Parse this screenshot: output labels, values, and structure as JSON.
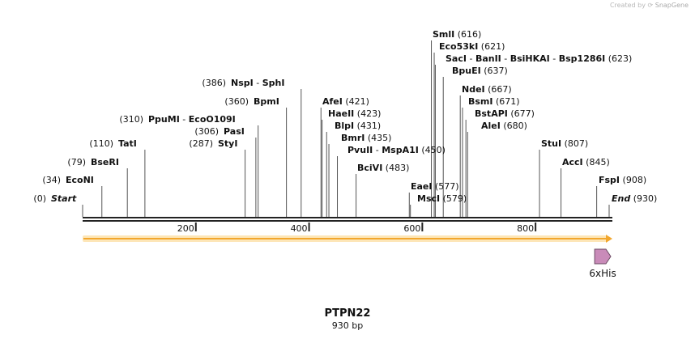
{
  "credit": {
    "prefix": "Created by",
    "brand": "SnapGene"
  },
  "sequence": {
    "name": "PTPN22",
    "length_label": "930 bp",
    "length": 930
  },
  "ruler": {
    "ticks": [
      "200",
      "400",
      "600",
      "800"
    ]
  },
  "sites": [
    {
      "names": [
        "Start"
      ],
      "pos": "(0)",
      "bp": 0,
      "italic": true
    },
    {
      "names": [
        "EcoNI"
      ],
      "pos": "(34)",
      "bp": 34
    },
    {
      "names": [
        "BseRI"
      ],
      "pos": "(79)",
      "bp": 79
    },
    {
      "names": [
        "TatI"
      ],
      "pos": "(110)",
      "bp": 110
    },
    {
      "names": [
        "StyI"
      ],
      "pos": "(287)",
      "bp": 287
    },
    {
      "names": [
        "PasI"
      ],
      "pos": "(306)",
      "bp": 306
    },
    {
      "names": [
        "PpuMI",
        "EcoO109I"
      ],
      "pos": "(310)",
      "bp": 310
    },
    {
      "names": [
        "BpmI"
      ],
      "pos": "(360)",
      "bp": 360
    },
    {
      "names": [
        "NspI",
        "SphI"
      ],
      "pos": "(386)",
      "bp": 386
    },
    {
      "names": [
        "AfeI"
      ],
      "pos": "(421)",
      "bp": 421
    },
    {
      "names": [
        "HaeII"
      ],
      "pos": "(423)",
      "bp": 423
    },
    {
      "names": [
        "BlpI"
      ],
      "pos": "(431)",
      "bp": 431
    },
    {
      "names": [
        "BmrI"
      ],
      "pos": "(435)",
      "bp": 435
    },
    {
      "names": [
        "PvuII",
        "MspA1I"
      ],
      "pos": "(450)",
      "bp": 450
    },
    {
      "names": [
        "BciVI"
      ],
      "pos": "(483)",
      "bp": 483
    },
    {
      "names": [
        "EaeI"
      ],
      "pos": "(577)",
      "bp": 577
    },
    {
      "names": [
        "MscI"
      ],
      "pos": "(579)",
      "bp": 579
    },
    {
      "names": [
        "SmlI"
      ],
      "pos": "(616)",
      "bp": 616
    },
    {
      "names": [
        "Eco53kI"
      ],
      "pos": "(621)",
      "bp": 621
    },
    {
      "names": [
        "SacI",
        "BanII",
        "BsiHKAI",
        "Bsp1286I"
      ],
      "pos": "(623)",
      "bp": 623
    },
    {
      "names": [
        "BpuEI"
      ],
      "pos": "(637)",
      "bp": 637
    },
    {
      "names": [
        "NdeI"
      ],
      "pos": "(667)",
      "bp": 667
    },
    {
      "names": [
        "BsmI"
      ],
      "pos": "(671)",
      "bp": 671
    },
    {
      "names": [
        "BstAPI"
      ],
      "pos": "(677)",
      "bp": 677
    },
    {
      "names": [
        "AleI"
      ],
      "pos": "(680)",
      "bp": 680
    },
    {
      "names": [
        "StuI"
      ],
      "pos": "(807)",
      "bp": 807
    },
    {
      "names": [
        "AccI"
      ],
      "pos": "(845)",
      "bp": 845
    },
    {
      "names": [
        "FspI"
      ],
      "pos": "(908)",
      "bp": 908
    },
    {
      "names": [
        "End"
      ],
      "pos": "(930)",
      "bp": 930,
      "italic": true
    }
  ],
  "features": [
    {
      "name": "6xHis",
      "color": "#c98bb9",
      "bp_start": 913,
      "bp_end": 930
    }
  ],
  "orf": {
    "color": "#f2a72e",
    "bp_start": 0,
    "bp_end": 930
  }
}
